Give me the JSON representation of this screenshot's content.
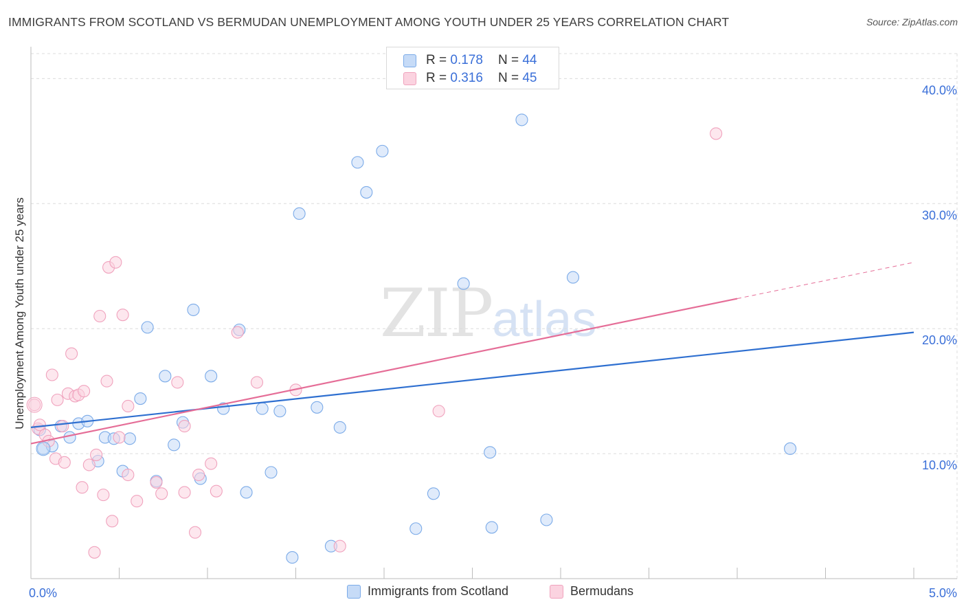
{
  "header": {
    "title": "IMMIGRANTS FROM SCOTLAND VS BERMUDAN UNEMPLOYMENT AMONG YOUTH UNDER 25 YEARS CORRELATION CHART",
    "source": "Source: ZipAtlas.com"
  },
  "watermark": {
    "zip": "ZIP",
    "atlas": "atlas"
  },
  "legend_top": {
    "rows": [
      {
        "r_label": "R =",
        "r_value": "0.178",
        "n_label": "N =",
        "n_value": "44"
      },
      {
        "r_label": "R =",
        "r_value": "0.316",
        "n_label": "N =",
        "n_value": "45"
      }
    ]
  },
  "chart_data": {
    "type": "scatter",
    "title": "IMMIGRANTS FROM SCOTLAND VS BERMUDAN UNEMPLOYMENT AMONG YOUTH UNDER 25 YEARS CORRELATION CHART",
    "xlabel": "",
    "ylabel": "Unemployment Among Youth under 25 years",
    "xlim": [
      0,
      5
    ],
    "ylim": [
      0,
      42
    ],
    "x_tick_labels": [
      "0.0%",
      "5.0%"
    ],
    "y_ticks": [
      10,
      20,
      30,
      40
    ],
    "y_tick_labels": [
      "10.0%",
      "20.0%",
      "30.0%",
      "40.0%"
    ],
    "grid": true,
    "legend_position": "bottom",
    "series": [
      {
        "name": "Immigrants from Scotland",
        "color": "#7aaae8",
        "fill": "#c6dbf7",
        "line_color": "#2e6fd0",
        "r": 0.178,
        "n": 44,
        "trend": {
          "x0": 0,
          "y0": 12.1,
          "x1": 5,
          "y1": 19.7
        },
        "points": [
          [
            0.05,
            11.9
          ],
          [
            0.07,
            10.4
          ],
          [
            0.12,
            10.6
          ],
          [
            0.17,
            12.2
          ],
          [
            0.22,
            11.3
          ],
          [
            0.27,
            12.4
          ],
          [
            0.32,
            12.6
          ],
          [
            0.38,
            9.4
          ],
          [
            0.42,
            11.3
          ],
          [
            0.47,
            11.2
          ],
          [
            0.52,
            8.6
          ],
          [
            0.56,
            11.2
          ],
          [
            0.62,
            14.4
          ],
          [
            0.66,
            20.1
          ],
          [
            0.71,
            7.8
          ],
          [
            0.76,
            16.2
          ],
          [
            0.81,
            10.7
          ],
          [
            0.86,
            12.5
          ],
          [
            0.92,
            21.5
          ],
          [
            0.96,
            8.0
          ],
          [
            1.02,
            16.2
          ],
          [
            1.09,
            13.6
          ],
          [
            1.18,
            19.9
          ],
          [
            1.22,
            6.9
          ],
          [
            1.31,
            13.6
          ],
          [
            1.36,
            8.5
          ],
          [
            1.41,
            13.4
          ],
          [
            1.48,
            1.7
          ],
          [
            1.52,
            29.2
          ],
          [
            1.62,
            13.7
          ],
          [
            1.7,
            2.6
          ],
          [
            1.75,
            12.1
          ],
          [
            1.85,
            33.3
          ],
          [
            1.9,
            30.9
          ],
          [
            1.99,
            34.2
          ],
          [
            2.18,
            4.0
          ],
          [
            2.28,
            6.8
          ],
          [
            2.45,
            23.6
          ],
          [
            2.6,
            10.1
          ],
          [
            2.61,
            4.1
          ],
          [
            2.78,
            36.7
          ],
          [
            2.92,
            4.7
          ],
          [
            3.07,
            24.1
          ],
          [
            4.3,
            10.4
          ]
        ]
      },
      {
        "name": "Bermudans",
        "color": "#f0a2bd",
        "fill": "#fbd3e0",
        "line_color": "#e56d97",
        "r": 0.316,
        "n": 45,
        "trend": {
          "x0": 0,
          "y0": 10.8,
          "x1": 4.0,
          "y1": 22.4,
          "dashed_to": {
            "x": 5,
            "y": 25.3
          }
        },
        "points": [
          [
            0.02,
            13.9
          ],
          [
            0.04,
            12.0
          ],
          [
            0.05,
            12.3
          ],
          [
            0.08,
            11.5
          ],
          [
            0.1,
            11.0
          ],
          [
            0.12,
            16.3
          ],
          [
            0.14,
            9.6
          ],
          [
            0.15,
            14.3
          ],
          [
            0.18,
            12.2
          ],
          [
            0.19,
            9.3
          ],
          [
            0.21,
            14.8
          ],
          [
            0.23,
            18.0
          ],
          [
            0.25,
            14.6
          ],
          [
            0.27,
            14.7
          ],
          [
            0.29,
            7.3
          ],
          [
            0.3,
            15.0
          ],
          [
            0.33,
            9.1
          ],
          [
            0.36,
            2.1
          ],
          [
            0.37,
            9.9
          ],
          [
            0.39,
            21.0
          ],
          [
            0.41,
            6.7
          ],
          [
            0.43,
            15.8
          ],
          [
            0.44,
            24.9
          ],
          [
            0.46,
            4.6
          ],
          [
            0.48,
            25.3
          ],
          [
            0.5,
            11.3
          ],
          [
            0.52,
            21.1
          ],
          [
            0.55,
            8.3
          ],
          [
            0.55,
            13.8
          ],
          [
            0.6,
            6.2
          ],
          [
            0.71,
            7.7
          ],
          [
            0.74,
            6.8
          ],
          [
            0.83,
            15.7
          ],
          [
            0.87,
            12.2
          ],
          [
            0.87,
            6.9
          ],
          [
            0.93,
            3.7
          ],
          [
            0.95,
            8.3
          ],
          [
            1.02,
            9.2
          ],
          [
            1.05,
            7.0
          ],
          [
            1.17,
            19.7
          ],
          [
            1.28,
            15.7
          ],
          [
            1.5,
            15.1
          ],
          [
            1.75,
            2.6
          ],
          [
            2.31,
            13.4
          ],
          [
            3.88,
            35.6
          ]
        ]
      }
    ]
  }
}
